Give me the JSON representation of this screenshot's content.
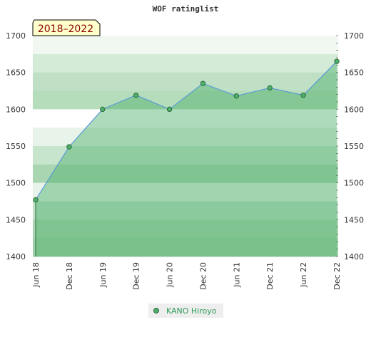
{
  "chart_data": {
    "type": "area",
    "title": "WOF ratinglist",
    "period_badge": "2018–2022",
    "categories": [
      "Jun 18",
      "Dec 18",
      "Jun 19",
      "Dec 19",
      "Jun 20",
      "Dec 20",
      "Jun 21",
      "Dec 21",
      "Jun 22",
      "Dec 22"
    ],
    "series": [
      {
        "name": "KANO Hiroyo",
        "values": [
          1477,
          1549,
          1600,
          1619,
          1600,
          1635,
          1618,
          1629,
          1619,
          1665
        ]
      }
    ],
    "ylim": [
      1400,
      1700
    ],
    "yticks": [
      1400,
      1450,
      1500,
      1550,
      1600,
      1650,
      1700
    ],
    "y_axis_sides": [
      "left",
      "right"
    ],
    "legend_position": "bottom",
    "colors": {
      "line": "#5b9bd5",
      "fill": "#4caf6a",
      "marker": "#4caf6a",
      "marker_edge": "#2f6b3f",
      "legend_text": "#2e9a5a",
      "badge_bg": "#ffffcc",
      "badge_text": "#8b0000"
    }
  }
}
